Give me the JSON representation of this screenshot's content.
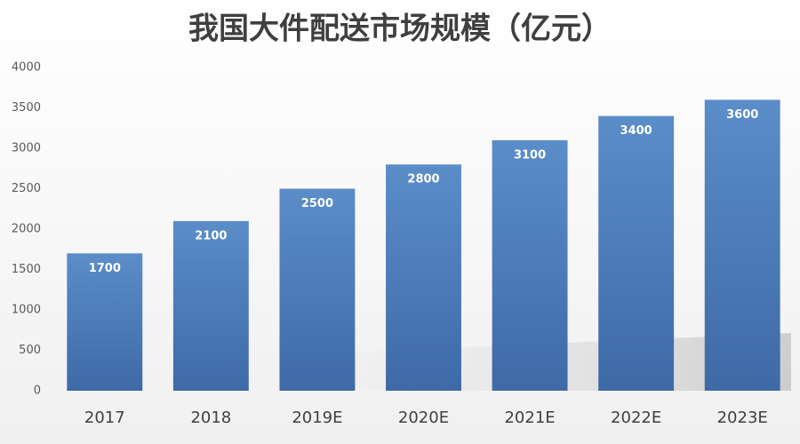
{
  "chart_data": {
    "type": "bar",
    "title": "我国大件配送市场规模（亿元）",
    "categories": [
      "2017",
      "2018",
      "2019E",
      "2020E",
      "2021E",
      "2022E",
      "2023E"
    ],
    "values": [
      1700,
      2100,
      2500,
      2800,
      3100,
      3400,
      3600
    ],
    "color": "#4f81bd",
    "ylim": [
      0,
      4000
    ],
    "yticks": [
      0,
      500,
      1000,
      1500,
      2000,
      2500,
      3000,
      3500,
      4000
    ],
    "grid": false
  }
}
